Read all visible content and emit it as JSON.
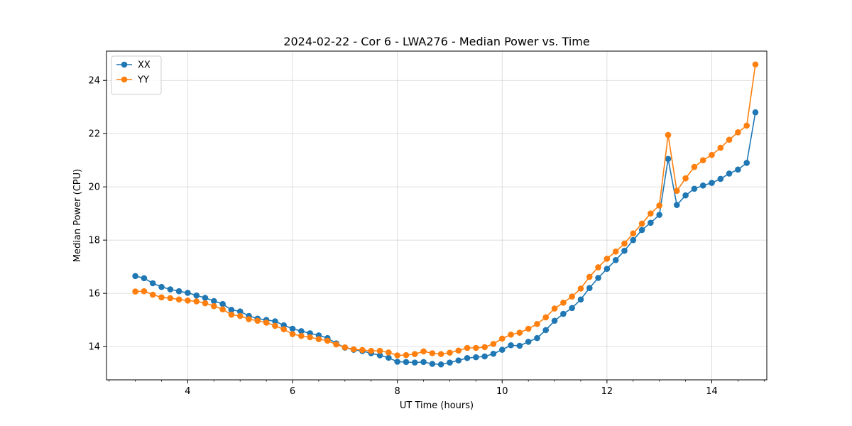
{
  "chart_data": {
    "type": "line",
    "title": "2024-02-22 - Cor 6 - LWA276 - Median Power vs. Time",
    "xlabel": "UT Time (hours)",
    "ylabel": "Median Power (CPU)",
    "xlim": [
      2.45,
      15.05
    ],
    "ylim": [
      12.75,
      25.1
    ],
    "xticks": [
      4,
      6,
      8,
      10,
      12,
      14
    ],
    "xtick_labels": [
      "4",
      "6",
      "8",
      "10",
      "12",
      "14"
    ],
    "xminor_step": 0.5,
    "yticks": [
      14,
      16,
      18,
      20,
      22,
      24
    ],
    "ytick_labels": [
      "14",
      "16",
      "18",
      "20",
      "22",
      "24"
    ],
    "grid": true,
    "legend_position": "top-left",
    "x": [
      3.0,
      3.167,
      3.333,
      3.5,
      3.667,
      3.833,
      4.0,
      4.167,
      4.333,
      4.5,
      4.667,
      4.833,
      5.0,
      5.167,
      5.333,
      5.5,
      5.667,
      5.833,
      6.0,
      6.167,
      6.333,
      6.5,
      6.667,
      6.833,
      7.0,
      7.167,
      7.333,
      7.5,
      7.667,
      7.833,
      8.0,
      8.167,
      8.333,
      8.5,
      8.667,
      8.833,
      9.0,
      9.167,
      9.333,
      9.5,
      9.667,
      9.833,
      10.0,
      10.167,
      10.333,
      10.5,
      10.667,
      10.833,
      11.0,
      11.167,
      11.333,
      11.5,
      11.667,
      11.833,
      12.0,
      12.167,
      12.333,
      12.5,
      12.667,
      12.833,
      13.0,
      13.167,
      13.333,
      13.5,
      13.667,
      13.833,
      14.0,
      14.167,
      14.333,
      14.5,
      14.667,
      14.833
    ],
    "series": [
      {
        "name": "XX",
        "color": "#1f77b4",
        "values": [
          16.65,
          16.57,
          16.38,
          16.24,
          16.15,
          16.08,
          16.02,
          15.92,
          15.83,
          15.71,
          15.6,
          15.38,
          15.32,
          15.15,
          15.05,
          15.0,
          14.95,
          14.8,
          14.67,
          14.58,
          14.5,
          14.42,
          14.32,
          14.12,
          13.96,
          13.88,
          13.83,
          13.75,
          13.67,
          13.58,
          13.43,
          13.42,
          13.4,
          13.42,
          13.35,
          13.33,
          13.4,
          13.48,
          13.57,
          13.6,
          13.63,
          13.73,
          13.88,
          14.05,
          14.03,
          14.18,
          14.32,
          14.62,
          14.97,
          15.23,
          15.45,
          15.77,
          16.2,
          16.58,
          16.92,
          17.25,
          17.6,
          18.0,
          18.38,
          18.65,
          18.95,
          21.05,
          19.32,
          19.68,
          19.93,
          20.05,
          20.15,
          20.3,
          20.5,
          20.65,
          20.9,
          22.8
        ]
      },
      {
        "name": "YY",
        "color": "#ff7f0e",
        "values": [
          16.07,
          16.08,
          15.95,
          15.85,
          15.82,
          15.77,
          15.73,
          15.7,
          15.63,
          15.52,
          15.4,
          15.2,
          15.15,
          15.03,
          14.97,
          14.9,
          14.78,
          14.65,
          14.47,
          14.4,
          14.35,
          14.28,
          14.22,
          14.08,
          13.97,
          13.9,
          13.87,
          13.84,
          13.84,
          13.78,
          13.67,
          13.68,
          13.72,
          13.82,
          13.75,
          13.72,
          13.77,
          13.85,
          13.95,
          13.95,
          13.98,
          14.1,
          14.3,
          14.45,
          14.52,
          14.67,
          14.85,
          15.1,
          15.43,
          15.65,
          15.88,
          16.18,
          16.62,
          16.98,
          17.3,
          17.57,
          17.87,
          18.25,
          18.62,
          19.0,
          19.3,
          21.95,
          19.85,
          20.32,
          20.75,
          21.0,
          21.2,
          21.47,
          21.77,
          22.05,
          22.3,
          24.6
        ]
      }
    ]
  }
}
